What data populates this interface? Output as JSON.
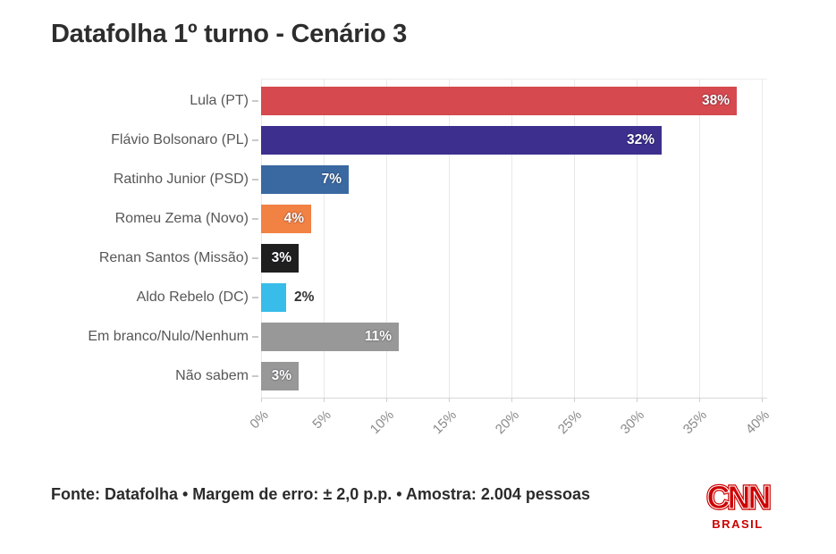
{
  "title": "Datafolha 1º turno - Cenário 3",
  "chart_data": {
    "type": "bar",
    "orientation": "horizontal",
    "title": "Datafolha 1º turno - Cenário 3",
    "categories": [
      "Lula (PT)",
      "Flávio Bolsonaro (PL)",
      "Ratinho Junior (PSD)",
      "Romeu Zema (Novo)",
      "Renan Santos (Missão)",
      "Aldo Rebelo (DC)",
      "Em branco/Nulo/Nenhum",
      "Não sabem"
    ],
    "values": [
      38,
      32,
      7,
      4,
      3,
      2,
      11,
      3
    ],
    "value_labels": [
      "38%",
      "32%",
      "7%",
      "4%",
      "3%",
      "2%",
      "11%",
      "3%"
    ],
    "bar_colors": [
      "#d5494f",
      "#3c2f8e",
      "#3a69a2",
      "#f28144",
      "#1f1f1f",
      "#38bce9",
      "#989898",
      "#989898"
    ],
    "xlabel": "",
    "ylabel": "",
    "xlim": [
      0,
      40
    ],
    "x_ticks": [
      0,
      5,
      10,
      15,
      20,
      25,
      30,
      35,
      40
    ],
    "x_tick_labels": [
      "0%",
      "5%",
      "10%",
      "15%",
      "20%",
      "25%",
      "30%",
      "35%",
      "40%"
    ],
    "grid": true,
    "legend": false
  },
  "footer": {
    "source_text": "Fonte: Datafolha • Margem de erro: ± 2,0 p.p. • Amostra: 2.004 pessoas"
  },
  "branding": {
    "logo_text": "CNN",
    "logo_subtext": "BRASIL",
    "logo_color": "#cc0000"
  },
  "theme": {
    "background": "#ffffff",
    "title_color": "#2d2d2d",
    "grid_color": "#e9e9e9",
    "axis_line_color": "#d8d8d8",
    "category_label_color": "#575757",
    "tick_label_color": "#8a8a8a",
    "value_inside_color": "#ffffff",
    "value_outside_color": "#333333"
  }
}
